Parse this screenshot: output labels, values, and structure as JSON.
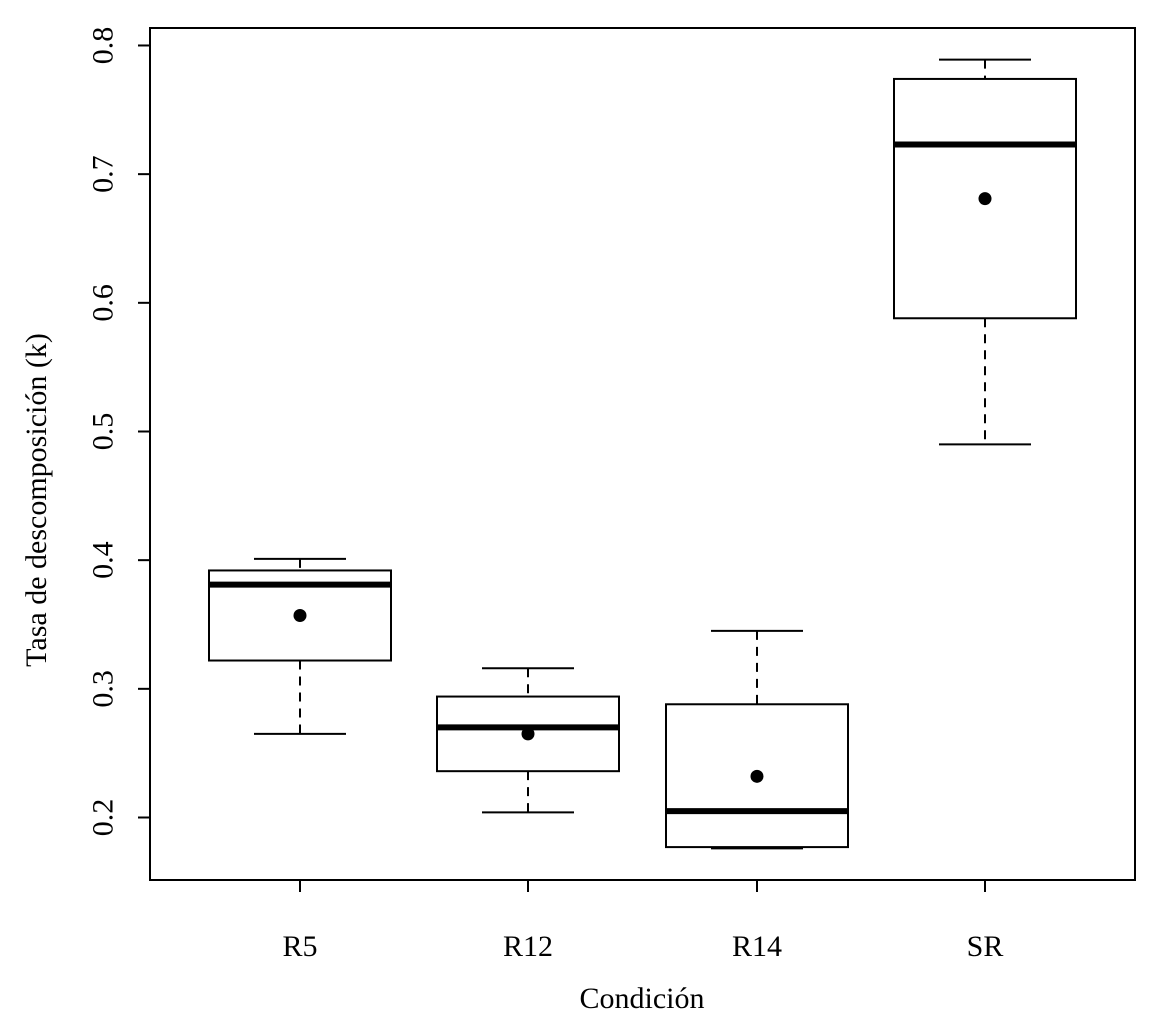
{
  "chart_data": {
    "type": "boxplot",
    "title": "",
    "xlabel": "Condición",
    "ylabel": "Tasa de descomposición (k)",
    "ylim": [
      0.15,
      0.81
    ],
    "yticks": [
      "0.2",
      "0.3",
      "0.4",
      "0.5",
      "0.6",
      "0.7",
      "0.8"
    ],
    "categories": [
      "R5",
      "R12",
      "R14",
      "SR"
    ],
    "boxes": [
      {
        "name": "R5",
        "whisker_low": 0.265,
        "q1": 0.322,
        "median": 0.381,
        "q3": 0.392,
        "whisker_high": 0.401,
        "mean": 0.357
      },
      {
        "name": "R12",
        "whisker_low": 0.204,
        "q1": 0.236,
        "median": 0.27,
        "q3": 0.294,
        "whisker_high": 0.316,
        "mean": 0.265
      },
      {
        "name": "R14",
        "whisker_low": 0.176,
        "q1": 0.177,
        "median": 0.205,
        "q3": 0.288,
        "whisker_high": 0.345,
        "mean": 0.232
      },
      {
        "name": "SR",
        "whisker_low": 0.49,
        "q1": 0.588,
        "median": 0.723,
        "q3": 0.774,
        "whisker_high": 0.789,
        "mean": 0.681
      }
    ],
    "grid": false,
    "legend": "none"
  }
}
